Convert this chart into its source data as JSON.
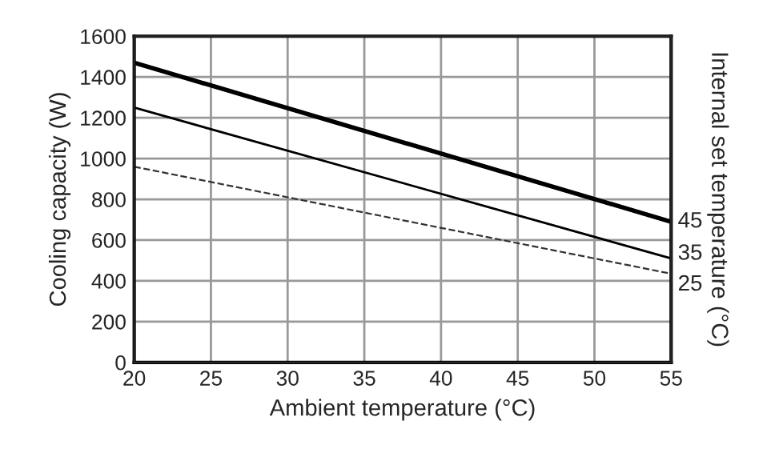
{
  "chart_data": {
    "type": "line",
    "xlabel": "Ambient temperature (°C)",
    "ylabel": "Cooling capacity (W)",
    "y2label": "Internal set temperature (°C)",
    "x": [
      20,
      55
    ],
    "xlim": [
      20,
      55
    ],
    "xticks": [
      20,
      25,
      30,
      35,
      40,
      45,
      50,
      55
    ],
    "ylim": [
      0,
      1600
    ],
    "yticks": [
      0,
      200,
      400,
      600,
      800,
      1000,
      1200,
      1400,
      1600
    ],
    "grid": true,
    "legend": false,
    "marker": "none",
    "series": [
      {
        "name": "45",
        "color": "#000000",
        "values": [
          1470,
          690
        ],
        "line_style": "solid"
      },
      {
        "name": "35",
        "color": "#000000",
        "values": [
          1250,
          510
        ],
        "line_style": "solid"
      },
      {
        "name": "25",
        "color": "#333333",
        "values": [
          960,
          435
        ],
        "line_style": "dashed"
      }
    ]
  }
}
